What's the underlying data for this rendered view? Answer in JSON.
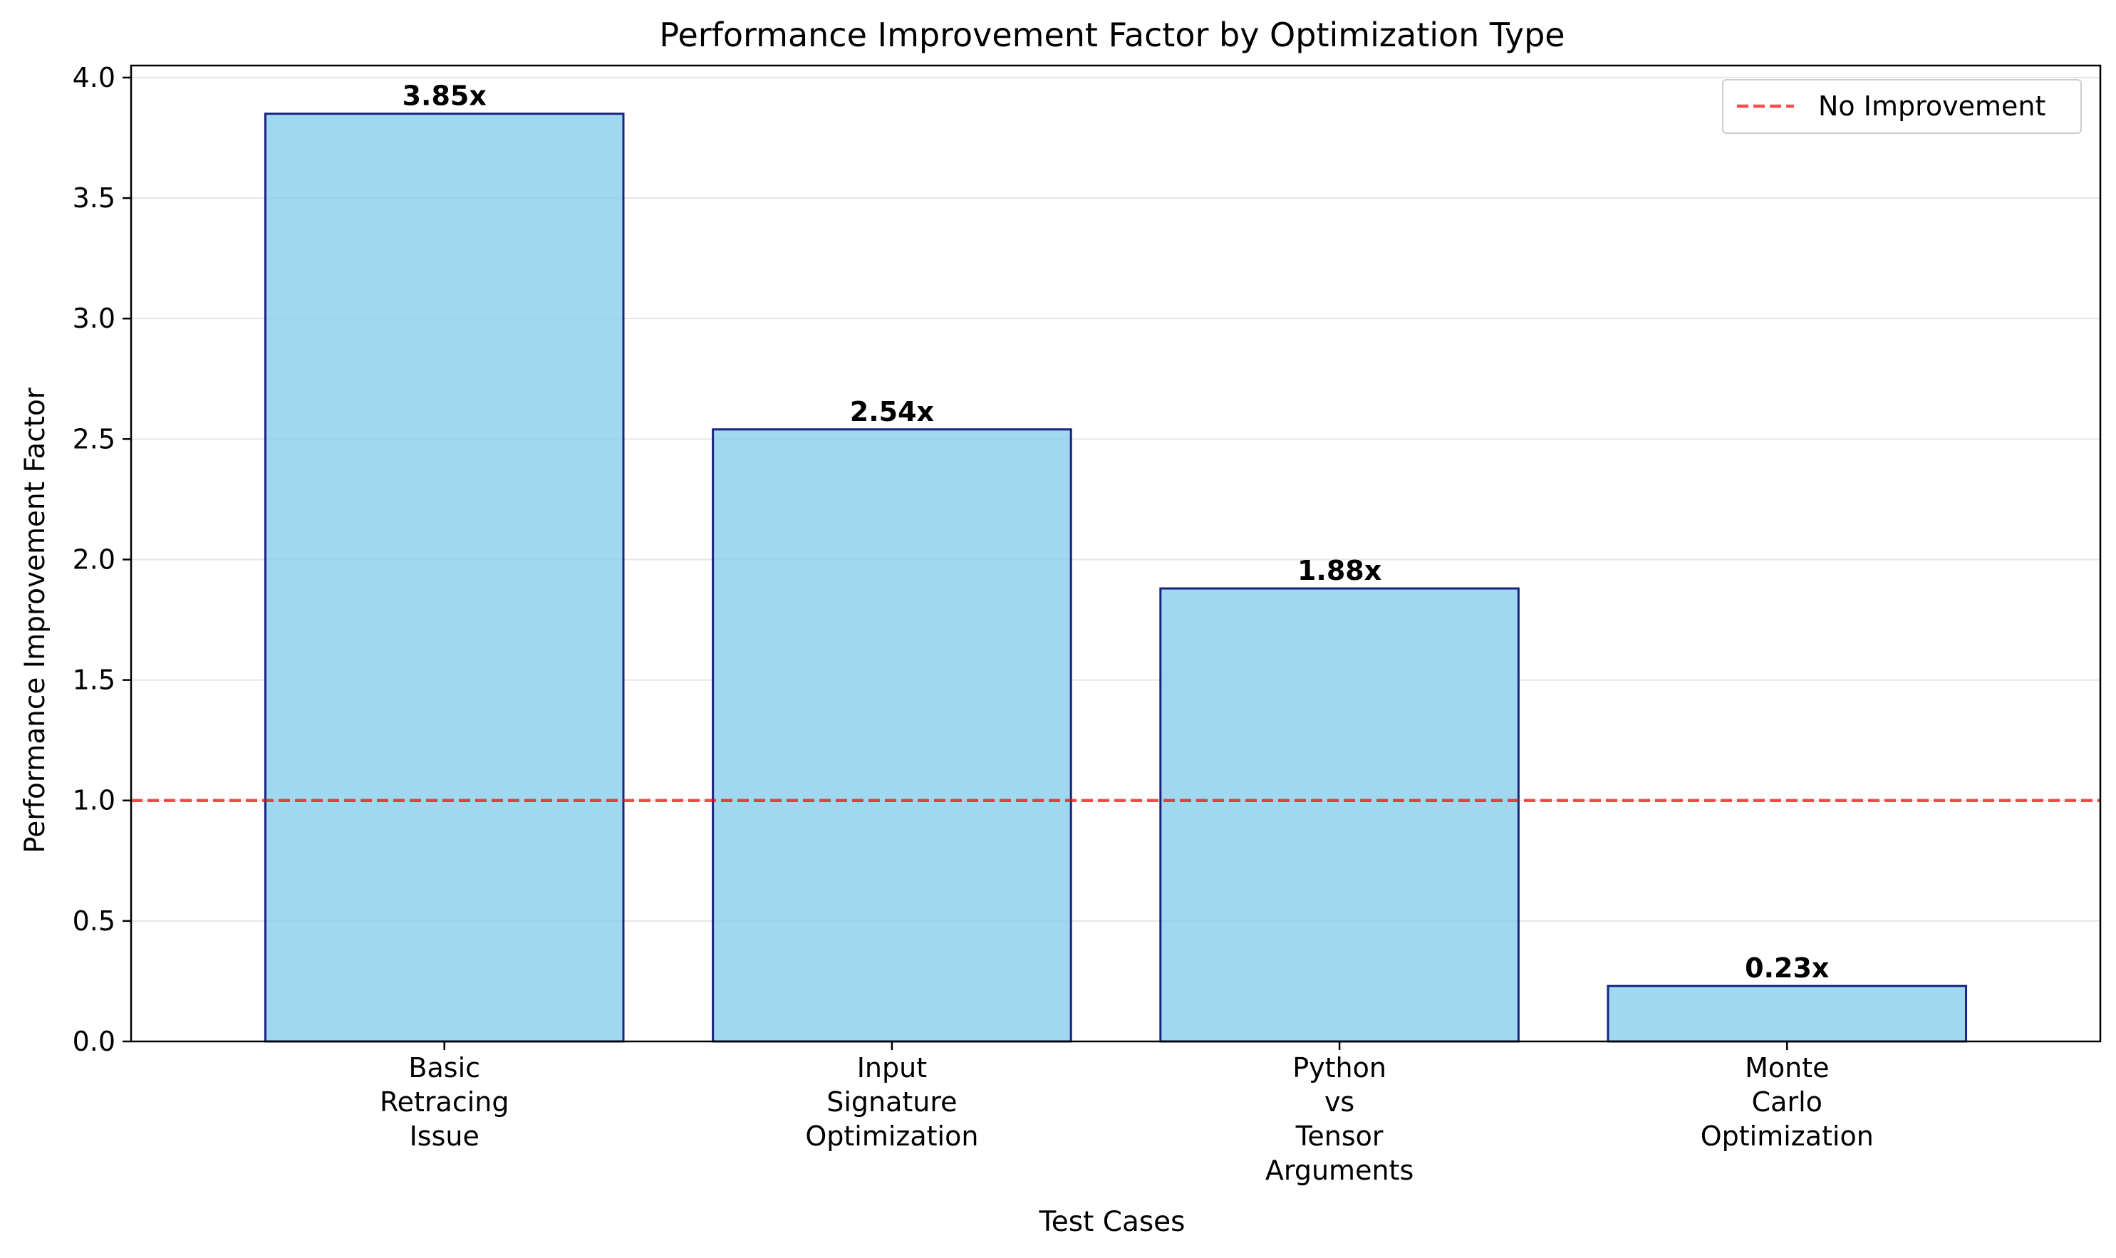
{
  "chart_data": {
    "type": "bar",
    "title": "Performance Improvement Factor by Optimization Type",
    "xlabel": "Test Cases",
    "ylabel": "Performance Improvement Factor",
    "categories": [
      [
        "Basic",
        "Retracing",
        "Issue"
      ],
      [
        "Input",
        "Signature",
        "Optimization"
      ],
      [
        "Python",
        "vs",
        "Tensor",
        "Arguments"
      ],
      [
        "Monte",
        "Carlo",
        "Optimization"
      ]
    ],
    "values": [
      3.85,
      2.54,
      1.88,
      0.23
    ],
    "value_labels": [
      "3.85x",
      "2.54x",
      "1.88x",
      "0.23x"
    ],
    "ylim": [
      0,
      4.05
    ],
    "yticks": [
      0.0,
      0.5,
      1.0,
      1.5,
      2.0,
      2.5,
      3.0,
      3.5,
      4.0
    ],
    "ytick_labels": [
      "0.0",
      "0.5",
      "1.0",
      "1.5",
      "2.0",
      "2.5",
      "3.0",
      "3.5",
      "4.0"
    ],
    "grid": "y",
    "reference_line": {
      "value": 1.0,
      "label": "No Improvement",
      "color": "#ff0000",
      "style": "dashed"
    },
    "legend_position": "top-right",
    "colors": {
      "bar_fill": "#87ceeb",
      "bar_edge": "#1a237e",
      "grid": "#e6e6e6"
    }
  }
}
